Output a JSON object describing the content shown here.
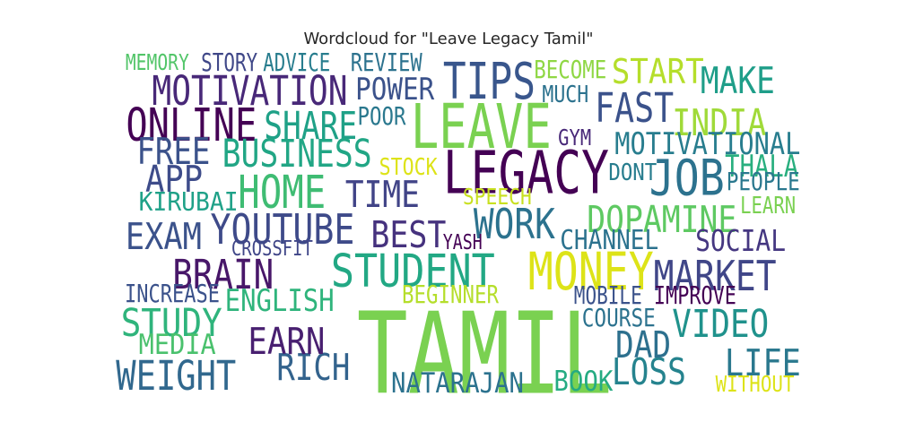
{
  "title": "Wordcloud for \"Leave Legacy Tamil\"",
  "words": [
    {
      "text": "TAMIL",
      "color": "#7ad151"
    },
    {
      "text": "LEGACY",
      "color": "#440154"
    },
    {
      "text": "LEAVE",
      "color": "#7ad151"
    },
    {
      "text": "MONEY",
      "color": "#dde318"
    },
    {
      "text": "TIPS",
      "color": "#39568c"
    },
    {
      "text": "JOB",
      "color": "#2c728e"
    },
    {
      "text": "STUDENT",
      "color": "#22a884"
    },
    {
      "text": "ONLINE",
      "color": "#440154"
    },
    {
      "text": "HOME",
      "color": "#3fbc73"
    },
    {
      "text": "MARKET",
      "color": "#404688"
    },
    {
      "text": "MOTIVATION",
      "color": "#482878"
    },
    {
      "text": "YOUTUBE",
      "color": "#3e4a89"
    },
    {
      "text": "WORK",
      "color": "#2c728e"
    },
    {
      "text": "BRAIN",
      "color": "#481769"
    },
    {
      "text": "FAST",
      "color": "#3b528b"
    },
    {
      "text": "DOPAMINE",
      "color": "#5ec962"
    },
    {
      "text": "STUDY",
      "color": "#2fb47c"
    },
    {
      "text": "SHARE",
      "color": "#1fa187"
    },
    {
      "text": "BUSINESS",
      "color": "#21a685"
    },
    {
      "text": "WEIGHT",
      "color": "#31688e"
    },
    {
      "text": "VIDEO",
      "color": "#20928c"
    },
    {
      "text": "MAKE",
      "color": "#1f9e89"
    },
    {
      "text": "START",
      "color": "#b5de2b"
    },
    {
      "text": "RICH",
      "color": "#33638d"
    },
    {
      "text": "BEST",
      "color": "#46327e"
    },
    {
      "text": "TIME",
      "color": "#414487"
    },
    {
      "text": "INDIA",
      "color": "#a0da39"
    },
    {
      "text": "FREE",
      "color": "#3b528b"
    },
    {
      "text": "APP",
      "color": "#3e4c8a"
    },
    {
      "text": "LOSS",
      "color": "#25838e"
    },
    {
      "text": "EXAM",
      "color": "#3b528b"
    },
    {
      "text": "EARN",
      "color": "#481f70"
    },
    {
      "text": "DAD",
      "color": "#2d708e"
    },
    {
      "text": "LIFE",
      "color": "#2a788e"
    },
    {
      "text": "ENGLISH",
      "color": "#2fb47c"
    },
    {
      "text": "MOTIVATIONAL",
      "color": "#287d8e"
    },
    {
      "text": "POWER",
      "color": "#3b528b"
    },
    {
      "text": "SOCIAL",
      "color": "#453781"
    },
    {
      "text": "CHANNEL",
      "color": "#2c728e"
    },
    {
      "text": "BOOK",
      "color": "#25ab82"
    },
    {
      "text": "MEDIA",
      "color": "#4ac16d"
    },
    {
      "text": "NATARAJAN",
      "color": "#2c728e"
    },
    {
      "text": "THALA",
      "color": "#29af7f"
    },
    {
      "text": "REVIEW",
      "color": "#2c728e"
    },
    {
      "text": "ADVICE",
      "color": "#287d8e"
    },
    {
      "text": "STORY",
      "color": "#3f4788"
    },
    {
      "text": "KIRUBAI",
      "color": "#1fa188"
    },
    {
      "text": "BECOME",
      "color": "#8fd744"
    },
    {
      "text": "INCREASE",
      "color": "#3b528b"
    },
    {
      "text": "BEGINNER",
      "color": "#b5de2b"
    },
    {
      "text": "MOBILE",
      "color": "#3b528b"
    },
    {
      "text": "IMPROVE",
      "color": "#440154"
    },
    {
      "text": "COURSE",
      "color": "#2c728e"
    },
    {
      "text": "PEOPLE",
      "color": "#2a788e"
    },
    {
      "text": "MEMORY",
      "color": "#52c569"
    },
    {
      "text": "POOR",
      "color": "#2a788e"
    },
    {
      "text": "STOCK",
      "color": "#dde318"
    },
    {
      "text": "SPEECH",
      "color": "#c8e020"
    },
    {
      "text": "GYM",
      "color": "#482878"
    },
    {
      "text": "DONT",
      "color": "#287d8e"
    },
    {
      "text": "MUCH",
      "color": "#2c728e"
    },
    {
      "text": "LEARN",
      "color": "#7ad151"
    },
    {
      "text": "WITHOUT",
      "color": "#dde318"
    },
    {
      "text": "YASH",
      "color": "#440154"
    },
    {
      "text": "CROSSFIT",
      "color": "#404688"
    }
  ]
}
